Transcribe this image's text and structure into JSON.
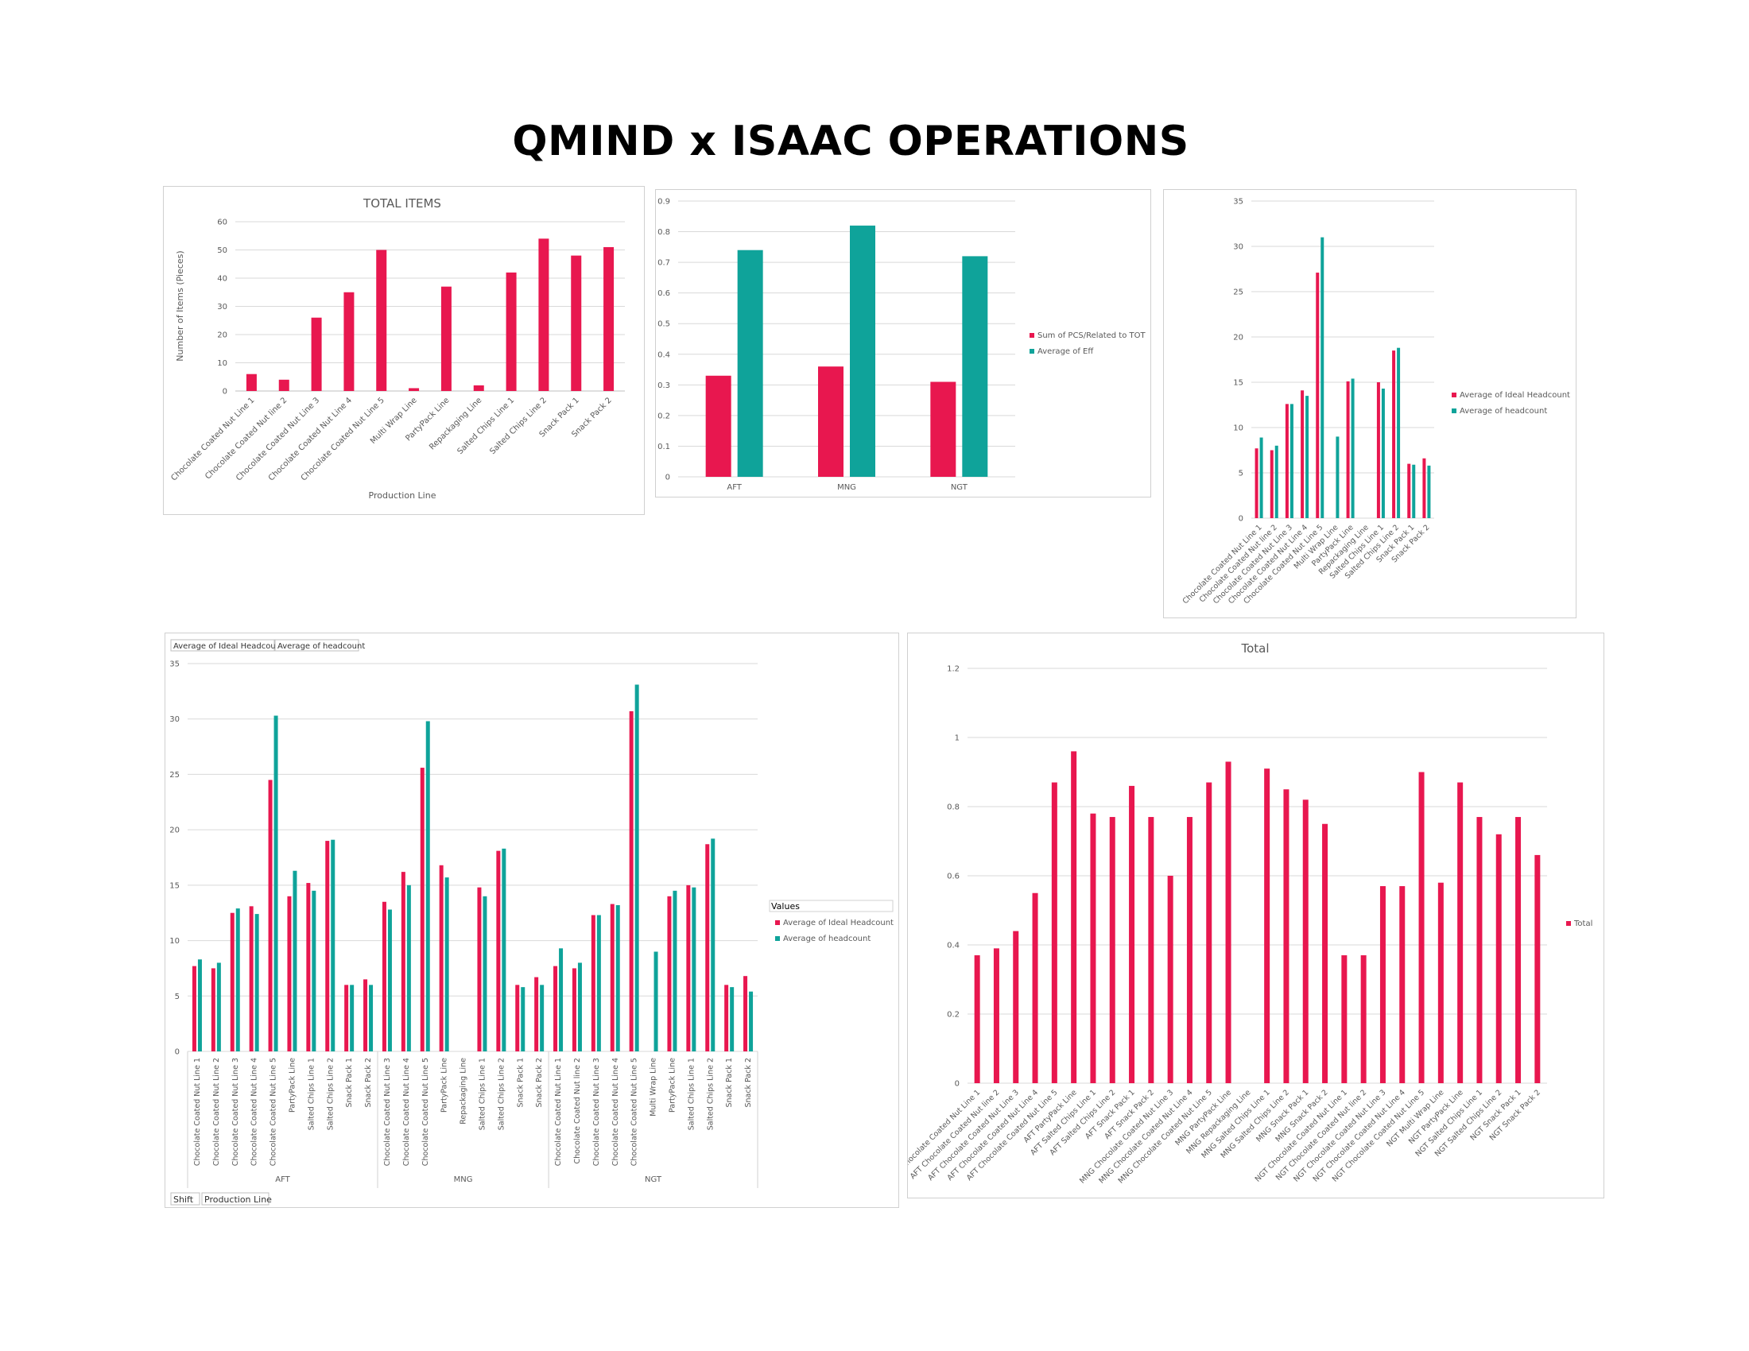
{
  "page": {
    "title": "QMIND x ISAAC OPERATIONS"
  },
  "colors": {
    "red": "#E8174F",
    "teal": "#0FA39A",
    "grid": "#d9d9d9",
    "axis": "#595959"
  },
  "chart_data": [
    {
      "id": "total-items",
      "type": "bar",
      "title": "TOTAL ITEMS",
      "xlabel": "Production Line",
      "ylabel": "Number of Items (Pieces)",
      "ylim": [
        0,
        60
      ],
      "yticks": [
        0,
        10,
        20,
        30,
        40,
        50,
        60
      ],
      "categories": [
        "Chocolate Coated Nut Line 1",
        "Chocolate Coated Nut line 2",
        "Chocolate Coated Nut Line 3",
        "Chocolate Coated Nut Line 4",
        "Chocolate Coated Nut Line 5",
        "Multi Wrap Line",
        "PartyPack Line",
        "Repackaging Line",
        "Salted Chips Line 1",
        "Salted Chips Line 2",
        "Snack Pack 1",
        "Snack Pack 2"
      ],
      "series": [
        {
          "values": [
            6,
            4,
            26,
            35,
            50,
            1,
            37,
            2,
            42,
            54,
            48,
            51
          ]
        }
      ],
      "grid": true
    },
    {
      "id": "shift-efficiency",
      "type": "bar",
      "title": "",
      "ylim": [
        0,
        0.9
      ],
      "yticks": [
        0,
        0.1,
        0.2,
        0.3,
        0.4,
        0.5,
        0.6,
        0.7,
        0.8,
        0.9
      ],
      "categories": [
        "AFT",
        "MNG",
        "NGT"
      ],
      "series": [
        {
          "name": "Sum of PCS/Related to TOT",
          "values": [
            0.33,
            0.36,
            0.31
          ]
        },
        {
          "name": "Average of Eff",
          "values": [
            0.74,
            0.82,
            0.72
          ]
        }
      ],
      "legend": "right",
      "grid": true
    },
    {
      "id": "headcount-by-line",
      "type": "bar",
      "title": "",
      "ylim": [
        0,
        35
      ],
      "yticks": [
        0,
        5,
        10,
        15,
        20,
        25,
        30,
        35
      ],
      "categories": [
        "Chocolate Coated Nut Line 1",
        "Chocolate Coated Nut line 2",
        "Chocolate Coated Nut Line 3",
        "Chocolate Coated Nut Line 4",
        "Chocolate Coated Nut Line 5",
        "Multi Wrap Line",
        "PartyPack Line",
        "Repackaging Line",
        "Salted Chips Line 1",
        "Salted Chips Line 2",
        "Snack Pack 1",
        "Snack Pack 2"
      ],
      "series": [
        {
          "name": "Average of Ideal Headcount",
          "values": [
            7.7,
            7.5,
            12.6,
            14.1,
            27.1,
            0,
            15.1,
            0,
            15.0,
            18.5,
            6.0,
            6.6
          ]
        },
        {
          "name": "Average of headcount",
          "values": [
            8.9,
            8.0,
            12.6,
            13.5,
            31.0,
            9.0,
            15.4,
            0,
            14.3,
            18.8,
            5.9,
            5.8
          ]
        }
      ],
      "legend": "right",
      "grid": true
    },
    {
      "id": "headcount-by-shift-line",
      "type": "bar",
      "title": "",
      "ylim": [
        0,
        35
      ],
      "yticks": [
        0,
        5,
        10,
        15,
        20,
        25,
        30,
        35
      ],
      "field_buttons_top": [
        "Average of Ideal Headcount",
        "Average of headcount"
      ],
      "field_buttons_bottom": [
        "Shift",
        "Production Line"
      ],
      "legend_title": "Values",
      "groups": [
        {
          "label": "AFT",
          "categories": [
            "Chocolate Coated Nut Line 1",
            "Chocolate Coated Nut Line 2",
            "Chocolate Coated Nut Line 3",
            "Chocolate Coated Nut Line 4",
            "Chocolate Coated Nut Line 5",
            "PartyPack Line",
            "Salted Chips Line 1",
            "Salted Chips Line 2",
            "Snack Pack 1",
            "Snack Pack 2"
          ],
          "ideal": [
            7.7,
            7.5,
            12.5,
            13.1,
            24.5,
            14.0,
            15.2,
            19.0,
            6.0,
            6.5
          ],
          "actual": [
            8.3,
            8.0,
            12.9,
            12.4,
            30.3,
            16.3,
            14.5,
            19.1,
            6.0,
            6.0
          ]
        },
        {
          "label": "MNG",
          "categories": [
            "Chocolate Coated Nut Line 3",
            "Chocolate Coated Nut Line 4",
            "Chocolate Coated Nut Line 5",
            "PartyPack Line",
            "Repackaging Line",
            "Salted Chips Line 1",
            "Salted Chips Line 2",
            "Snack Pack 1",
            "Snack Pack 2"
          ],
          "ideal": [
            13.5,
            16.2,
            25.6,
            16.8,
            0,
            14.8,
            18.1,
            6.0,
            6.7
          ],
          "actual": [
            12.8,
            15.0,
            29.8,
            15.7,
            0,
            14.0,
            18.3,
            5.8,
            6.0
          ]
        },
        {
          "label": "NGT",
          "categories": [
            "Chocolate Coated Nut Line 1",
            "Chocolate Coated Nut line 2",
            "Chocolate Coated Nut Line 3",
            "Chocolate Coated Nut Line 4",
            "Chocolate Coated Nut Line 5",
            "Multi Wrap Line",
            "PartyPack Line",
            "Salted Chips Line 1",
            "Salted Chips Line 2",
            "Snack Pack 1",
            "Snack Pack 2"
          ],
          "ideal": [
            7.7,
            7.5,
            12.3,
            13.3,
            30.7,
            0,
            14.0,
            15.0,
            18.7,
            6.0,
            6.8
          ],
          "actual": [
            9.3,
            8.0,
            12.3,
            13.2,
            33.1,
            9.0,
            14.5,
            14.8,
            19.2,
            5.8,
            5.4
          ]
        }
      ],
      "series": [
        {
          "name": "Average of Ideal Headcount"
        },
        {
          "name": "Average of headcount"
        }
      ],
      "legend": "right",
      "grid": true
    },
    {
      "id": "total-efficiency",
      "type": "bar",
      "title": "Total",
      "ylim": [
        0,
        1.2
      ],
      "yticks": [
        0,
        0.2,
        0.4,
        0.6,
        0.8,
        1,
        1.2
      ],
      "categories": [
        "AFT Chocolate Coated Nut Line 1",
        "AFT Chocolate Coated Nut line 2",
        "AFT Chocolate Coated Nut Line 3",
        "AFT Chocolate Coated Nut Line 4",
        "AFT Chocolate Coated Nut Line 5",
        "AFT PartyPack Line",
        "AFT Salted Chips Line 1",
        "AFT Salted Chips Line 2",
        "AFT Snack Pack 1",
        "AFT Snack Pack 2",
        "MNG Chocolate Coated Nut Line 3",
        "MNG Chocolate Coated Nut Line 4",
        "MNG Chocolate Coated Nut Line 5",
        "MNG PartyPack Line",
        "MNG Repackaging Line",
        "MNG Salted Chips Line 1",
        "MNG Salted Chips Line 2",
        "MNG Snack Pack 1",
        "MNG Snack Pack 2",
        "NGT Chocolate Coated Nut Line 1",
        "NGT Chocolate Coated Nut line 2",
        "NGT Chocolate Coated Nut Line 3",
        "NGT Chocolate Coated Nut Line 4",
        "NGT Chocolate Coated Nut Line 5",
        "NGT Multi Wrap Line",
        "NGT PartyPack Line",
        "NGT Salted Chips Line 1",
        "NGT Salted Chips Line 2",
        "NGT Snack Pack 1",
        "NGT Snack Pack 2"
      ],
      "series": [
        {
          "name": "Total",
          "values": [
            0.37,
            0.39,
            0.44,
            0.55,
            0.87,
            0.96,
            0.78,
            0.77,
            0.86,
            0.77,
            0.6,
            0.77,
            0.87,
            0.93,
            0,
            0.91,
            0.85,
            0.82,
            0.75,
            0.37,
            0.37,
            0.57,
            0.57,
            0.9,
            0.58,
            0.87,
            0.77,
            0.72,
            0.77,
            0.66
          ]
        }
      ],
      "legend": "right",
      "grid": true
    }
  ]
}
